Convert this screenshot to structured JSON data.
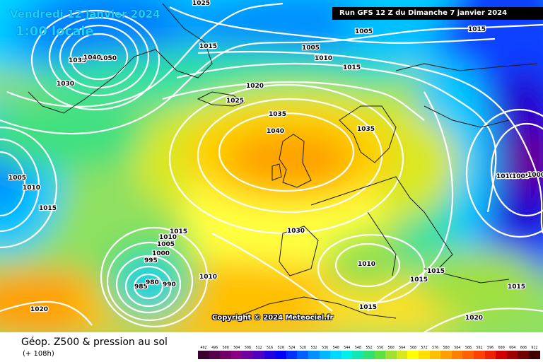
{
  "header": {
    "date": "Vendredi 12 janvier 2024",
    "hour": "1:00 locale",
    "run": "Run GFS 12 Z du Dimanche 7 janvier 2024"
  },
  "copyright": "Copyright © 2024 Meteociel.fr",
  "footer": {
    "title": "Géop. Z500 & pression au sol",
    "subtitle": "(+ 108h)"
  },
  "legend": {
    "values": [
      "492",
      "496",
      "500",
      "504",
      "508",
      "512",
      "516",
      "520",
      "524",
      "528",
      "532",
      "536",
      "540",
      "544",
      "548",
      "552",
      "556",
      "560",
      "564",
      "568",
      "572",
      "576",
      "580",
      "584",
      "588",
      "592",
      "596",
      "600",
      "604",
      "608",
      "612"
    ],
    "colors": [
      "#3a0030",
      "#55004a",
      "#700066",
      "#8a0082",
      "#7000a0",
      "#5000c0",
      "#2000e0",
      "#0000ff",
      "#0030ff",
      "#0060ff",
      "#0090ff",
      "#00b8ff",
      "#00d8ff",
      "#00f0e8",
      "#10e8b0",
      "#30e070",
      "#60e040",
      "#a0e030",
      "#d8e820",
      "#ffff00",
      "#ffe000",
      "#ffc000",
      "#ffa000",
      "#ff8000",
      "#ff6000",
      "#ff4000",
      "#f02000",
      "#d00000",
      "#a00000",
      "#700000",
      "#400000"
    ]
  },
  "isobars": [
    "1025",
    "1035",
    "1050",
    "1030",
    "1040",
    "1015",
    "1005",
    "1015",
    "1010",
    "1005",
    "1015",
    "1020",
    "1025",
    "1035",
    "1040",
    "1035",
    "1005",
    "1010",
    "1015",
    "1010",
    "1005",
    "1000",
    "995",
    "985",
    "980",
    "990",
    "1010",
    "1030",
    "1010",
    "1015",
    "1015",
    "1015",
    "1010",
    "1005",
    "1000",
    "1020",
    "1015",
    "1020",
    "1015"
  ]
}
